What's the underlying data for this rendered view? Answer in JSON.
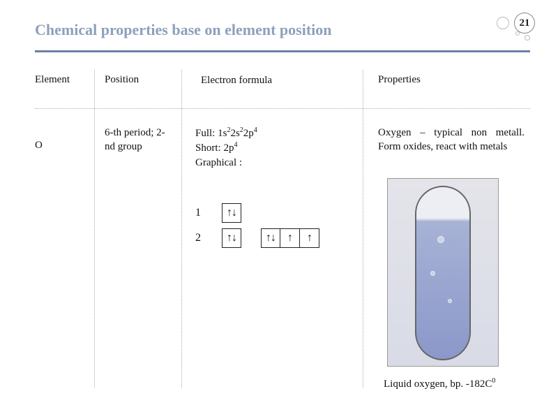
{
  "page_number": "21",
  "title": "Chemical properties base on element position",
  "colors": {
    "title": "#8ca0bc",
    "rule": "#6c7fa6",
    "dotted": "#aaaaaa",
    "text": "#111111",
    "background": "#ffffff"
  },
  "headers": {
    "element": "Element",
    "position": "Position",
    "formula": "Electron formula",
    "properties": "Properties"
  },
  "row": {
    "element": "O",
    "position": "6-th period; 2-nd group",
    "formula": {
      "full_label": "Full: ",
      "full_value_html": "1s<sup>2</sup>2s<sup>2</sup>2p<sup>4</sup>",
      "short_label": "Short: ",
      "short_value_html": "2p<sup>4</sup>",
      "graphical_label": "Graphical :"
    },
    "orbitals": [
      {
        "shell": "1",
        "groups": [
          [
            "↑↓"
          ]
        ]
      },
      {
        "shell": "2",
        "groups": [
          [
            "↑↓"
          ],
          [
            "↑↓",
            "↑",
            "↑"
          ]
        ]
      }
    ],
    "properties": "Oxygen – typical non metall. Form oxides, react with metals"
  },
  "image": {
    "alt": "Liquid oxygen in test tube",
    "caption_html": "Liquid oxygen, bp. -182C<sup>0</sup>"
  }
}
